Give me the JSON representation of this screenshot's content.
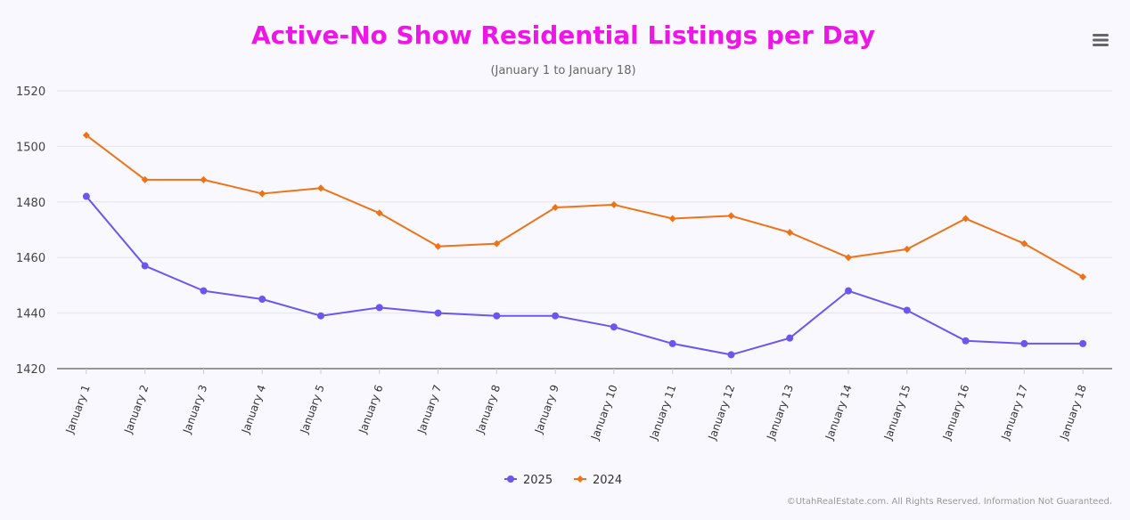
{
  "chart_data": {
    "type": "line",
    "title": "Active-No Show Residential Listings per Day",
    "subtitle": "(January 1 to January 18)",
    "categories": [
      "January 1",
      "January 2",
      "January 3",
      "January 4",
      "January 5",
      "January 6",
      "January 7",
      "January 8",
      "January 9",
      "January 10",
      "January 11",
      "January 12",
      "January 13",
      "January 14",
      "January 15",
      "January 16",
      "January 17",
      "January 18"
    ],
    "series": [
      {
        "name": "2025",
        "color": "#6b57f0",
        "marker": "circle",
        "values": [
          1482,
          1457,
          1448,
          1445,
          1439,
          1442,
          1440,
          1439,
          1439,
          1435,
          1429,
          1425,
          1431,
          1448,
          1441,
          1430,
          1429,
          1429
        ]
      },
      {
        "name": "2024",
        "color": "#ee7317",
        "marker": "diamond",
        "values": [
          1504,
          1488,
          1488,
          1483,
          1485,
          1476,
          1464,
          1465,
          1478,
          1479,
          1474,
          1475,
          1469,
          1460,
          1463,
          1474,
          1465,
          1453
        ]
      }
    ],
    "ylim": [
      1420,
      1520
    ],
    "yticks": [
      1420,
      1440,
      1460,
      1480,
      1500,
      1520
    ],
    "grid": true,
    "legend_position": "bottom-center",
    "xlabel": "",
    "ylabel": ""
  },
  "title_color": "#ee16e7",
  "menu_icon": "hamburger-menu-icon",
  "credits": "©UtahRealEstate.com. All Rights Reserved. Information Not Guaranteed."
}
